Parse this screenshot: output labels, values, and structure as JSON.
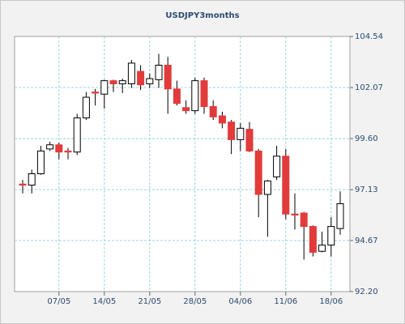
{
  "chart_data": {
    "type": "candlestick",
    "title": "USDJPY3months",
    "categories": [
      null,
      null,
      null,
      null,
      "07/05",
      null,
      null,
      null,
      null,
      "14/05",
      null,
      null,
      null,
      null,
      "21/05",
      null,
      null,
      null,
      null,
      "28/05",
      null,
      null,
      null,
      null,
      "04/06",
      null,
      null,
      null,
      null,
      "11/06",
      null,
      null,
      null,
      null,
      "18/06",
      null
    ],
    "open": [
      97.4,
      97.35,
      97.9,
      99.1,
      99.3,
      99.0,
      98.95,
      100.6,
      101.85,
      101.75,
      102.4,
      102.25,
      102.25,
      102.85,
      102.25,
      102.45,
      103.15,
      102.0,
      101.1,
      100.95,
      102.4,
      101.15,
      100.7,
      100.4,
      99.55,
      100.05,
      99.0,
      96.9,
      97.75,
      98.75,
      95.95,
      96.0,
      95.35,
      94.15,
      94.45,
      95.25
    ],
    "high": [
      97.6,
      98.1,
      99.25,
      99.45,
      99.4,
      99.15,
      100.8,
      101.85,
      102.0,
      102.45,
      102.45,
      102.5,
      103.4,
      103.15,
      102.75,
      103.7,
      103.55,
      102.4,
      101.45,
      102.55,
      102.55,
      101.45,
      100.9,
      100.5,
      100.35,
      100.4,
      99.1,
      97.6,
      99.25,
      99.1,
      96.95,
      96.05,
      95.4,
      95.1,
      95.8,
      97.05
    ],
    "low": [
      96.95,
      96.95,
      97.85,
      99.0,
      98.6,
      98.6,
      98.8,
      100.5,
      101.2,
      101.05,
      101.85,
      101.8,
      102.05,
      101.95,
      102.05,
      102.05,
      100.8,
      101.2,
      100.8,
      100.8,
      100.8,
      100.5,
      100.1,
      98.85,
      99.0,
      98.95,
      95.8,
      94.85,
      97.6,
      95.7,
      95.2,
      93.75,
      93.9,
      94.1,
      93.9,
      94.95
    ],
    "close": [
      97.35,
      97.9,
      99.0,
      99.3,
      98.95,
      98.95,
      100.6,
      101.6,
      101.8,
      102.4,
      102.25,
      102.4,
      103.25,
      102.2,
      102.5,
      103.15,
      102.0,
      101.3,
      100.95,
      102.4,
      101.15,
      100.65,
      100.35,
      99.55,
      100.1,
      99.0,
      96.9,
      97.55,
      98.75,
      95.95,
      95.9,
      95.35,
      94.1,
      94.45,
      95.35,
      96.45
    ],
    "up_color": "#ffffff",
    "down_color": "#e23b3b",
    "ylim": [
      92.2,
      104.54
    ],
    "yticks": [
      {
        "value": 92.2,
        "label": "92.20"
      },
      94.67,
      97.13,
      {
        "value": 99.6,
        "label": "99.60"
      },
      102.07,
      104.54
    ],
    "grid": true
  }
}
